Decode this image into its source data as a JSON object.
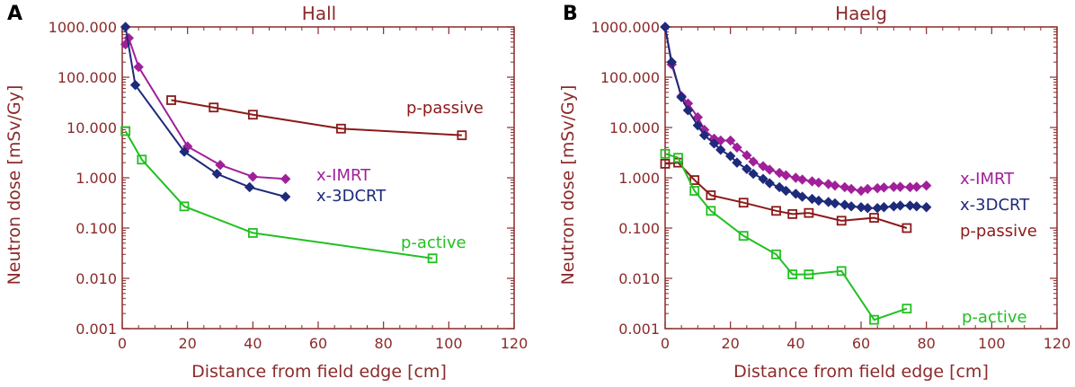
{
  "figure": {
    "colors": {
      "axis": "#8B2A2A",
      "p-passive": "#8B1A1A",
      "x-IMRT": "#A0209A",
      "x-3DCRT": "#1E2A7A",
      "p-active": "#22C022"
    }
  },
  "chart_data": [
    {
      "type": "line",
      "panel": "A",
      "title": "Hall",
      "xlabel": "Distance from field edge [cm]",
      "ylabel": "Neutron dose [mSv/Gy]",
      "xlim": [
        0,
        120
      ],
      "ylim": [
        0.001,
        1000
      ],
      "yscale": "log",
      "xticks": [
        0,
        20,
        40,
        60,
        80,
        100,
        120
      ],
      "xtick_labels": [
        "0",
        "20",
        "40",
        "60",
        "80",
        "100",
        "120"
      ],
      "yticks": [
        0.001,
        0.01,
        0.1,
        1,
        10,
        100,
        1000
      ],
      "ytick_labels": [
        "0.001",
        "0.010",
        "0.100",
        "1.000",
        "10.000",
        "100.000",
        "1000.000"
      ],
      "series": [
        {
          "name": "p-passive",
          "label": "p-passive",
          "marker": "square",
          "x": [
            15,
            28,
            40,
            67,
            104
          ],
          "y": [
            35,
            25,
            18,
            9.5,
            7
          ]
        },
        {
          "name": "x-IMRT",
          "label": "x-IMRT",
          "marker": "diamond",
          "x": [
            1,
            2,
            5,
            20,
            30,
            40,
            50
          ],
          "y": [
            450,
            600,
            160,
            4.2,
            1.8,
            1.05,
            0.95
          ]
        },
        {
          "name": "x-3DCRT",
          "label": "x-3DCRT",
          "marker": "diamond",
          "x": [
            1,
            4,
            19,
            29,
            39,
            50
          ],
          "y": [
            1000,
            70,
            3.3,
            1.2,
            0.65,
            0.42
          ]
        },
        {
          "name": "p-active",
          "label": "p-active",
          "marker": "square",
          "x": [
            1,
            6,
            19,
            40,
            95
          ],
          "y": [
            8.5,
            2.3,
            0.27,
            0.08,
            0.025
          ]
        }
      ]
    },
    {
      "type": "line",
      "panel": "B",
      "title": "Haelg",
      "xlabel": "Distance from field edge [cm]",
      "ylabel": "Neutron dose [mSv/Gy]",
      "xlim": [
        0,
        120
      ],
      "ylim": [
        0.001,
        1000
      ],
      "yscale": "log",
      "xticks": [
        0,
        20,
        40,
        60,
        80,
        100,
        120
      ],
      "xtick_labels": [
        "0",
        "20",
        "40",
        "60",
        "80",
        "100",
        "120"
      ],
      "yticks": [
        0.001,
        0.01,
        0.1,
        1,
        10,
        100,
        1000
      ],
      "ytick_labels": [
        "0.001",
        "0.010",
        "0.100",
        "1.000",
        "10.000",
        "100.000",
        "1000.000"
      ],
      "series": [
        {
          "name": "x-IMRT",
          "label": "x-IMRT",
          "marker": "diamond",
          "x": [
            0,
            2,
            5,
            7,
            10,
            12,
            15,
            17,
            20,
            22,
            25,
            27,
            30,
            32,
            35,
            37,
            40,
            42,
            45,
            47,
            50,
            52,
            55,
            57,
            60,
            62,
            65,
            67,
            70,
            72,
            75,
            77,
            80
          ],
          "y": [
            1000,
            180,
            42,
            30,
            16,
            9,
            6,
            5.5,
            5.5,
            4,
            2.8,
            2.1,
            1.7,
            1.45,
            1.25,
            1.12,
            1.0,
            0.92,
            0.85,
            0.8,
            0.75,
            0.7,
            0.65,
            0.6,
            0.55,
            0.6,
            0.62,
            0.64,
            0.66,
            0.66,
            0.65,
            0.66,
            0.7
          ]
        },
        {
          "name": "x-3DCRT",
          "label": "x-3DCRT",
          "marker": "diamond",
          "x": [
            0,
            2,
            5,
            7,
            10,
            12,
            15,
            17,
            20,
            22,
            25,
            27,
            30,
            32,
            35,
            37,
            40,
            42,
            45,
            47,
            50,
            52,
            55,
            57,
            60,
            62,
            65,
            67,
            70,
            72,
            75,
            77,
            80
          ],
          "y": [
            1000,
            200,
            40,
            22,
            11,
            7,
            4.8,
            3.6,
            2.7,
            2.0,
            1.5,
            1.2,
            0.95,
            0.78,
            0.65,
            0.55,
            0.48,
            0.42,
            0.38,
            0.35,
            0.33,
            0.31,
            0.29,
            0.27,
            0.26,
            0.25,
            0.25,
            0.26,
            0.27,
            0.28,
            0.28,
            0.27,
            0.26
          ]
        },
        {
          "name": "p-passive",
          "label": "p-passive",
          "marker": "square",
          "x": [
            0,
            4,
            9,
            14,
            24,
            34,
            39,
            44,
            54,
            64,
            74
          ],
          "y": [
            1.9,
            2.0,
            0.9,
            0.45,
            0.32,
            0.22,
            0.19,
            0.2,
            0.14,
            0.16,
            0.1
          ]
        },
        {
          "name": "p-active",
          "label": "p-active",
          "marker": "square",
          "x": [
            0,
            4,
            9,
            14,
            24,
            34,
            39,
            44,
            54,
            64,
            74
          ],
          "y": [
            3.0,
            2.5,
            0.55,
            0.22,
            0.07,
            0.03,
            0.012,
            0.012,
            0.014,
            0.0015,
            0.0025
          ]
        }
      ]
    }
  ]
}
